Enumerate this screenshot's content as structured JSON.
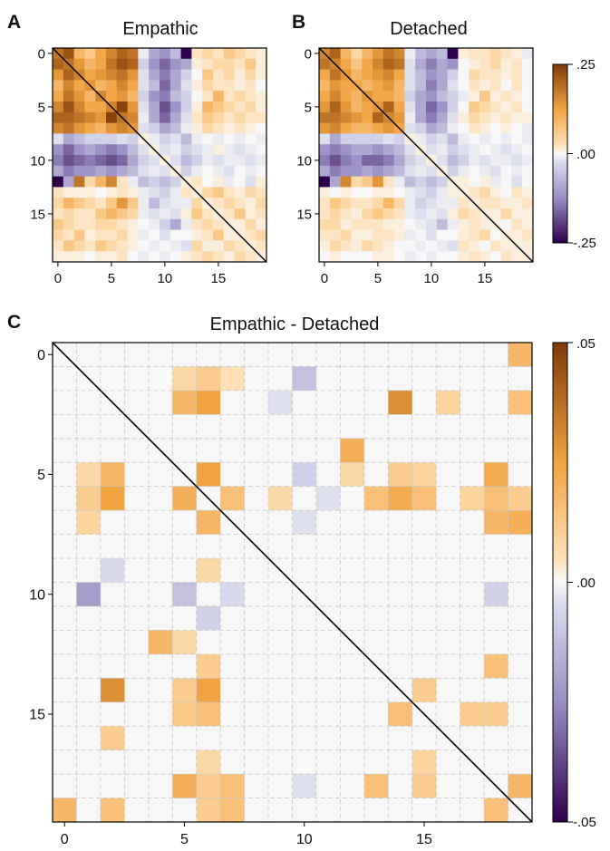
{
  "figure": {
    "letters": {
      "a": "A",
      "b": "B",
      "c": "C"
    }
  },
  "chart_data": [
    {
      "id": "A",
      "type": "heatmap",
      "title": "Empathic",
      "xlabel": "",
      "ylabel": "",
      "n": 20,
      "xticks": [
        0,
        5,
        10,
        15
      ],
      "yticks": [
        0,
        5,
        10,
        15
      ],
      "clim": [
        -0.25,
        0.25
      ],
      "diagonal_line": true,
      "grid": false,
      "matrix": [
        [
          0.18,
          0.22,
          0.1,
          0.08,
          0.12,
          0.16,
          0.2,
          0.18,
          -0.02,
          -0.1,
          -0.12,
          -0.08,
          -0.28,
          0.04,
          0.06,
          0.04,
          0.08,
          0.06,
          0.04,
          0.02
        ],
        [
          0.2,
          0.18,
          0.14,
          0.1,
          0.12,
          0.18,
          0.22,
          0.2,
          -0.06,
          -0.12,
          -0.16,
          -0.12,
          -0.1,
          0.02,
          0.04,
          0.06,
          0.06,
          0.04,
          0.08,
          0.02
        ],
        [
          0.14,
          0.2,
          0.16,
          0.12,
          0.14,
          0.16,
          0.18,
          0.14,
          -0.04,
          -0.1,
          -0.14,
          -0.1,
          -0.06,
          0.0,
          0.08,
          0.04,
          0.06,
          0.02,
          0.06,
          0.02
        ],
        [
          0.1,
          0.16,
          0.12,
          0.14,
          0.1,
          0.12,
          0.16,
          0.12,
          -0.04,
          -0.08,
          -0.16,
          -0.1,
          -0.04,
          0.02,
          0.06,
          0.04,
          0.04,
          0.02,
          0.04,
          0.0
        ],
        [
          0.12,
          0.18,
          0.14,
          0.1,
          0.16,
          0.12,
          0.14,
          0.1,
          -0.06,
          -0.12,
          -0.14,
          -0.08,
          -0.06,
          0.0,
          0.04,
          0.1,
          0.04,
          0.06,
          0.04,
          0.02
        ],
        [
          0.16,
          0.22,
          0.16,
          0.12,
          0.12,
          0.16,
          0.24,
          0.14,
          -0.04,
          -0.1,
          -0.18,
          -0.12,
          -0.06,
          0.02,
          0.1,
          0.08,
          0.06,
          0.04,
          0.06,
          0.02
        ],
        [
          0.2,
          0.2,
          0.18,
          0.16,
          0.14,
          0.24,
          0.18,
          0.16,
          -0.02,
          -0.1,
          -0.16,
          -0.1,
          -0.04,
          0.04,
          0.08,
          0.06,
          0.04,
          0.06,
          0.04,
          0.04
        ],
        [
          0.16,
          0.18,
          0.14,
          0.12,
          0.1,
          0.14,
          0.16,
          0.14,
          -0.04,
          -0.06,
          -0.1,
          -0.08,
          -0.02,
          0.02,
          0.06,
          0.04,
          0.02,
          0.04,
          0.02,
          0.0
        ],
        [
          -0.04,
          -0.1,
          -0.08,
          -0.06,
          -0.06,
          -0.06,
          -0.04,
          -0.06,
          0.02,
          -0.02,
          -0.06,
          -0.04,
          -0.08,
          -0.02,
          0.0,
          -0.02,
          0.0,
          -0.02,
          0.0,
          -0.02
        ],
        [
          -0.12,
          -0.16,
          -0.12,
          -0.1,
          -0.12,
          -0.14,
          -0.12,
          -0.08,
          -0.04,
          0.02,
          -0.04,
          -0.02,
          -0.06,
          -0.04,
          -0.02,
          0.02,
          -0.02,
          -0.04,
          -0.02,
          0.0
        ],
        [
          -0.14,
          -0.18,
          -0.16,
          -0.14,
          -0.16,
          -0.18,
          -0.16,
          -0.1,
          -0.06,
          -0.04,
          0.02,
          -0.04,
          -0.08,
          -0.06,
          -0.02,
          -0.04,
          -0.02,
          -0.02,
          -0.04,
          -0.02
        ],
        [
          -0.1,
          -0.14,
          -0.12,
          -0.12,
          -0.1,
          -0.12,
          -0.1,
          -0.08,
          -0.04,
          -0.02,
          -0.04,
          0.02,
          -0.06,
          -0.02,
          0.0,
          -0.02,
          -0.04,
          0.0,
          -0.02,
          0.0
        ],
        [
          -0.26,
          -0.1,
          0.18,
          0.06,
          0.1,
          0.16,
          0.04,
          -0.02,
          -0.08,
          -0.06,
          -0.08,
          -0.06,
          0.02,
          0.04,
          0.0,
          0.02,
          -0.02,
          0.0,
          -0.04,
          0.02
        ],
        [
          0.04,
          0.02,
          0.02,
          0.02,
          0.0,
          0.02,
          0.04,
          0.02,
          -0.02,
          -0.04,
          -0.06,
          -0.02,
          0.04,
          0.02,
          0.06,
          0.08,
          0.04,
          0.02,
          0.06,
          0.04
        ],
        [
          0.06,
          0.1,
          0.08,
          0.06,
          0.04,
          0.08,
          0.14,
          0.08,
          -0.02,
          -0.08,
          -0.04,
          -0.02,
          -0.02,
          0.06,
          0.02,
          0.04,
          0.06,
          0.04,
          0.02,
          0.06
        ],
        [
          0.04,
          0.06,
          0.04,
          0.04,
          0.08,
          0.1,
          0.08,
          0.06,
          -0.02,
          -0.04,
          -0.02,
          -0.04,
          0.02,
          0.08,
          0.04,
          0.02,
          0.04,
          0.08,
          0.02,
          0.04
        ],
        [
          0.08,
          0.06,
          0.04,
          0.04,
          0.06,
          0.06,
          0.04,
          0.02,
          0.0,
          -0.02,
          -0.06,
          -0.1,
          -0.02,
          0.04,
          0.06,
          0.04,
          0.02,
          0.02,
          0.06,
          0.02
        ],
        [
          0.06,
          0.04,
          0.08,
          0.02,
          0.04,
          0.04,
          0.06,
          0.02,
          -0.02,
          0.0,
          -0.04,
          0.0,
          0.0,
          0.02,
          0.04,
          0.08,
          0.02,
          0.02,
          0.04,
          0.06
        ],
        [
          0.04,
          0.08,
          0.06,
          0.04,
          0.08,
          0.06,
          0.04,
          0.02,
          0.0,
          -0.02,
          0.0,
          -0.02,
          -0.04,
          0.06,
          0.02,
          0.02,
          0.06,
          0.04,
          0.02,
          0.04
        ],
        [
          0.02,
          0.02,
          0.02,
          0.0,
          0.02,
          0.02,
          0.04,
          0.0,
          -0.02,
          0.0,
          -0.02,
          0.0,
          0.02,
          0.04,
          0.06,
          0.04,
          0.02,
          0.06,
          0.04,
          0.02
        ]
      ]
    },
    {
      "id": "B",
      "type": "heatmap",
      "title": "Detached",
      "xlabel": "",
      "ylabel": "",
      "n": 20,
      "xticks": [
        0,
        5,
        10,
        15
      ],
      "yticks": [
        0,
        5,
        10,
        15
      ],
      "clim": [
        -0.25,
        0.25
      ],
      "diagonal_line": true,
      "grid": false,
      "colorbar": {
        "ticks": [
          ".25",
          ".00",
          "-.25"
        ]
      },
      "matrix": [
        [
          0.16,
          0.2,
          0.1,
          0.06,
          0.1,
          0.14,
          0.18,
          0.16,
          -0.02,
          -0.08,
          -0.1,
          -0.08,
          -0.26,
          0.02,
          0.04,
          0.04,
          0.06,
          0.04,
          0.02,
          -0.02
        ],
        [
          0.18,
          0.16,
          0.12,
          0.08,
          0.12,
          0.16,
          0.2,
          0.18,
          -0.04,
          -0.1,
          -0.14,
          -0.1,
          -0.12,
          0.0,
          0.02,
          0.04,
          0.06,
          0.02,
          0.04,
          0.0
        ],
        [
          0.12,
          0.18,
          0.14,
          0.1,
          0.12,
          0.14,
          0.16,
          0.12,
          -0.04,
          -0.08,
          -0.12,
          -0.1,
          -0.06,
          0.0,
          0.06,
          0.04,
          0.04,
          0.02,
          0.04,
          0.0
        ],
        [
          0.1,
          0.14,
          0.12,
          0.12,
          0.1,
          0.12,
          0.14,
          0.1,
          -0.04,
          -0.08,
          -0.14,
          -0.1,
          -0.04,
          0.0,
          0.04,
          0.02,
          0.04,
          0.0,
          0.04,
          0.0
        ],
        [
          0.12,
          0.16,
          0.12,
          0.1,
          0.14,
          0.12,
          0.12,
          0.1,
          -0.06,
          -0.1,
          -0.12,
          -0.08,
          -0.06,
          -0.02,
          0.02,
          0.08,
          0.02,
          0.04,
          0.02,
          0.0
        ],
        [
          0.14,
          0.2,
          0.14,
          0.1,
          0.12,
          0.14,
          0.2,
          0.12,
          -0.04,
          -0.1,
          -0.16,
          -0.12,
          -0.06,
          0.0,
          0.08,
          0.06,
          0.04,
          0.02,
          0.04,
          0.0
        ],
        [
          0.18,
          0.18,
          0.16,
          0.14,
          0.12,
          0.2,
          0.16,
          0.14,
          -0.02,
          -0.1,
          -0.14,
          -0.1,
          -0.04,
          0.02,
          0.06,
          0.04,
          0.02,
          0.04,
          0.02,
          0.02
        ],
        [
          0.14,
          0.16,
          0.12,
          0.1,
          0.1,
          0.12,
          0.14,
          0.12,
          -0.04,
          -0.06,
          -0.1,
          -0.08,
          -0.02,
          0.0,
          0.04,
          0.02,
          0.0,
          0.02,
          0.0,
          -0.02
        ],
        [
          -0.04,
          -0.1,
          -0.06,
          -0.06,
          -0.06,
          -0.06,
          -0.04,
          -0.06,
          0.02,
          -0.02,
          -0.06,
          -0.04,
          -0.08,
          -0.02,
          0.0,
          -0.02,
          0.0,
          -0.02,
          0.0,
          -0.02
        ],
        [
          -0.12,
          -0.14,
          -0.12,
          -0.1,
          -0.1,
          -0.12,
          -0.1,
          -0.08,
          -0.04,
          0.02,
          -0.04,
          -0.02,
          -0.06,
          -0.04,
          -0.02,
          0.0,
          -0.02,
          -0.04,
          -0.02,
          0.0
        ],
        [
          -0.14,
          -0.18,
          -0.14,
          -0.12,
          -0.16,
          -0.16,
          -0.14,
          -0.1,
          -0.06,
          -0.04,
          0.02,
          -0.04,
          -0.08,
          -0.06,
          -0.02,
          -0.04,
          -0.02,
          -0.02,
          -0.04,
          -0.02
        ],
        [
          -0.1,
          -0.14,
          -0.12,
          -0.12,
          -0.1,
          -0.12,
          -0.1,
          -0.08,
          -0.04,
          -0.02,
          -0.04,
          0.02,
          -0.06,
          -0.02,
          0.0,
          -0.02,
          -0.04,
          0.0,
          -0.02,
          0.0
        ],
        [
          -0.26,
          -0.1,
          0.16,
          0.06,
          0.08,
          0.14,
          0.04,
          -0.02,
          -0.08,
          -0.06,
          -0.08,
          -0.06,
          0.02,
          0.02,
          0.0,
          0.02,
          -0.02,
          0.0,
          -0.04,
          0.0
        ],
        [
          0.02,
          0.0,
          0.02,
          0.0,
          0.0,
          0.02,
          0.02,
          0.0,
          -0.02,
          -0.04,
          -0.06,
          -0.02,
          0.02,
          0.02,
          0.04,
          0.06,
          0.02,
          0.0,
          0.04,
          0.02
        ],
        [
          0.04,
          0.08,
          0.06,
          0.04,
          0.04,
          0.06,
          0.1,
          0.06,
          -0.02,
          -0.06,
          -0.04,
          -0.02,
          -0.02,
          0.04,
          0.02,
          0.04,
          0.04,
          0.02,
          0.02,
          0.04
        ],
        [
          0.04,
          0.06,
          0.04,
          0.02,
          0.06,
          0.08,
          0.06,
          0.04,
          -0.02,
          -0.04,
          -0.02,
          -0.04,
          0.02,
          0.06,
          0.04,
          0.02,
          0.02,
          0.06,
          0.02,
          0.02
        ],
        [
          0.06,
          0.06,
          0.02,
          0.04,
          0.04,
          0.04,
          0.02,
          0.02,
          0.0,
          -0.02,
          -0.04,
          -0.08,
          -0.02,
          0.02,
          0.04,
          0.02,
          0.02,
          0.0,
          0.04,
          0.02
        ],
        [
          0.04,
          0.04,
          0.06,
          0.02,
          0.02,
          0.04,
          0.04,
          0.02,
          -0.02,
          0.0,
          -0.04,
          0.0,
          0.0,
          0.02,
          0.04,
          0.06,
          0.0,
          0.02,
          0.02,
          0.04
        ],
        [
          0.02,
          0.06,
          0.04,
          0.02,
          0.06,
          0.04,
          0.02,
          0.0,
          0.0,
          -0.02,
          0.0,
          -0.02,
          -0.04,
          0.04,
          0.02,
          0.0,
          0.04,
          0.02,
          0.02,
          0.02
        ],
        [
          0.0,
          0.02,
          0.0,
          0.0,
          0.0,
          0.02,
          0.02,
          0.0,
          -0.02,
          0.0,
          -0.02,
          0.0,
          0.0,
          0.02,
          0.04,
          0.02,
          0.0,
          0.04,
          0.02,
          0.02
        ]
      ]
    },
    {
      "id": "C",
      "type": "heatmap",
      "title": "Empathic - Detached",
      "xlabel": "",
      "ylabel": "",
      "n": 20,
      "xticks": [
        0,
        5,
        10,
        15
      ],
      "yticks": [
        0,
        5,
        10,
        15
      ],
      "clim": [
        -0.05,
        0.05
      ],
      "diagonal_line": true,
      "grid": true,
      "colorbar": {
        "ticks": [
          ".05",
          ".00",
          "-.05"
        ]
      },
      "cells": [
        [
          0,
          19,
          0.02
        ],
        [
          1,
          5,
          0.012
        ],
        [
          1,
          6,
          0.015
        ],
        [
          1,
          7,
          0.01
        ],
        [
          1,
          10,
          -0.015
        ],
        [
          2,
          5,
          0.02
        ],
        [
          2,
          6,
          0.025
        ],
        [
          2,
          9,
          -0.008
        ],
        [
          2,
          14,
          0.03
        ],
        [
          2,
          16,
          0.013
        ],
        [
          2,
          19,
          0.018
        ],
        [
          4,
          12,
          0.022
        ],
        [
          5,
          1,
          0.012
        ],
        [
          5,
          2,
          0.02
        ],
        [
          5,
          6,
          0.025
        ],
        [
          5,
          10,
          -0.012
        ],
        [
          5,
          12,
          0.012
        ],
        [
          5,
          14,
          0.015
        ],
        [
          5,
          15,
          0.013
        ],
        [
          5,
          18,
          0.023
        ],
        [
          6,
          1,
          0.015
        ],
        [
          6,
          2,
          0.025
        ],
        [
          6,
          5,
          0.022
        ],
        [
          6,
          7,
          0.018
        ],
        [
          6,
          9,
          0.012
        ],
        [
          6,
          11,
          -0.008
        ],
        [
          6,
          13,
          0.018
        ],
        [
          6,
          14,
          0.023
        ],
        [
          6,
          15,
          0.018
        ],
        [
          6,
          17,
          0.013
        ],
        [
          6,
          18,
          0.018
        ],
        [
          6,
          19,
          0.015
        ],
        [
          7,
          1,
          0.013
        ],
        [
          7,
          6,
          0.02
        ],
        [
          7,
          10,
          -0.008
        ],
        [
          7,
          18,
          0.02
        ],
        [
          7,
          19,
          0.022
        ],
        [
          9,
          2,
          -0.01
        ],
        [
          9,
          6,
          0.012
        ],
        [
          10,
          1,
          -0.022
        ],
        [
          10,
          5,
          -0.015
        ],
        [
          10,
          7,
          -0.01
        ],
        [
          10,
          18,
          -0.012
        ],
        [
          11,
          6,
          -0.012
        ],
        [
          12,
          4,
          0.02
        ],
        [
          12,
          5,
          0.012
        ],
        [
          13,
          6,
          0.015
        ],
        [
          13,
          18,
          0.018
        ],
        [
          14,
          2,
          0.03
        ],
        [
          14,
          5,
          0.015
        ],
        [
          14,
          6,
          0.025
        ],
        [
          14,
          15,
          0.015
        ],
        [
          15,
          5,
          0.016
        ],
        [
          15,
          6,
          0.018
        ],
        [
          15,
          14,
          0.018
        ],
        [
          15,
          17,
          0.015
        ],
        [
          15,
          18,
          0.015
        ],
        [
          16,
          2,
          0.015
        ],
        [
          17,
          6,
          0.012
        ],
        [
          17,
          15,
          0.013
        ],
        [
          18,
          5,
          0.022
        ],
        [
          18,
          6,
          0.015
        ],
        [
          18,
          7,
          0.018
        ],
        [
          18,
          10,
          -0.008
        ],
        [
          18,
          13,
          0.018
        ],
        [
          18,
          15,
          0.015
        ],
        [
          18,
          19,
          0.02
        ],
        [
          19,
          0,
          0.02
        ],
        [
          19,
          2,
          0.018
        ],
        [
          19,
          6,
          0.015
        ],
        [
          19,
          7,
          0.018
        ],
        [
          19,
          18,
          0.018
        ]
      ]
    }
  ]
}
